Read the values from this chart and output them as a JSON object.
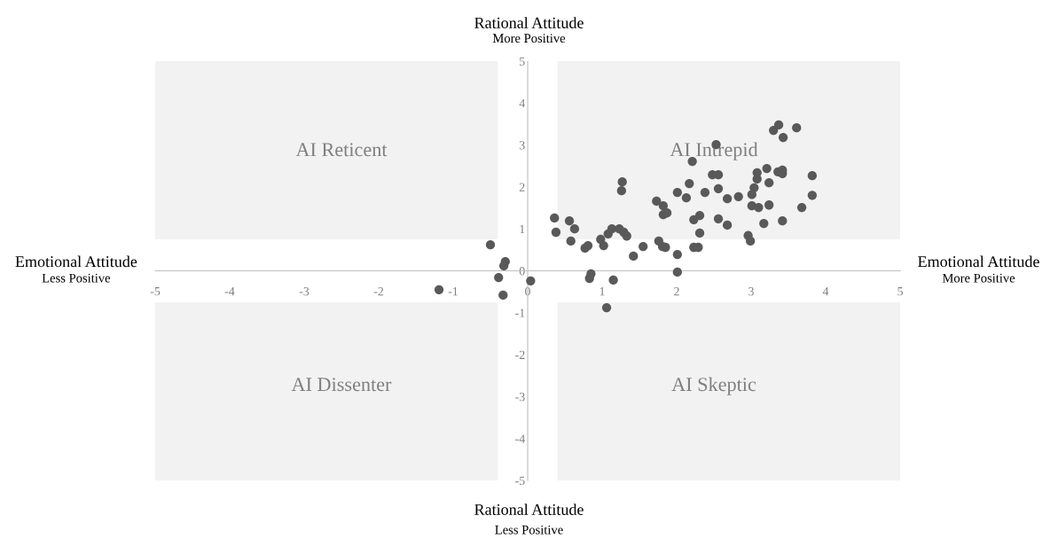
{
  "chart_data": {
    "type": "scatter",
    "annotations": [
      "Rational Attitude",
      "More Positive",
      "Emotional Attitude",
      "Less Positive",
      "Emotional Attitude",
      "More Positive",
      "Rational Attitude",
      "Less Positive",
      "AI Reticent",
      "AI Intrepid",
      "AI Dissenter",
      "AI Skeptic"
    ],
    "x": [
      -1.19,
      -0.5,
      -0.3,
      -0.32,
      -0.39,
      -0.33,
      0.04,
      0.36,
      0.38,
      0.56,
      0.63,
      0.58,
      0.77,
      0.81,
      0.85,
      0.83,
      0.98,
      1.02,
      1.06,
      1.15,
      1.08,
      1.13,
      1.23,
      1.29,
      1.33,
      1.27,
      1.26,
      1.42,
      1.55,
      1.73,
      1.76,
      1.82,
      1.81,
      1.85,
      1.82,
      1.87,
      2.01,
      2.13,
      2.17,
      2.21,
      2.23,
      2.31,
      2.31,
      2.23,
      2.29,
      2.01,
      2.01,
      2.38,
      2.48,
      2.56,
      2.53,
      2.56,
      2.56,
      2.68,
      2.68,
      2.83,
      2.96,
      2.99,
      3.01,
      3.01,
      3.04,
      3.08,
      3.08,
      3.1,
      3.17,
      3.21,
      3.24,
      3.24,
      3.3,
      3.37,
      3.43,
      3.36,
      3.42,
      3.42,
      3.42,
      3.61,
      3.68,
      3.82,
      3.82
    ],
    "values": [
      -0.45,
      0.62,
      0.22,
      0.12,
      -0.16,
      -0.58,
      -0.24,
      1.26,
      0.92,
      1.19,
      1.0,
      0.71,
      0.54,
      0.6,
      -0.07,
      -0.18,
      0.75,
      0.6,
      -0.88,
      -0.22,
      0.88,
      1.0,
      1.0,
      0.92,
      0.83,
      2.12,
      1.91,
      0.35,
      0.58,
      1.66,
      0.71,
      1.55,
      0.58,
      0.56,
      1.34,
      1.38,
      1.87,
      1.74,
      2.08,
      2.61,
      1.22,
      1.32,
      0.9,
      0.56,
      0.56,
      0.39,
      -0.03,
      1.87,
      2.29,
      2.29,
      3.01,
      1.96,
      1.24,
      1.72,
      1.09,
      1.77,
      0.84,
      0.71,
      1.55,
      1.82,
      1.98,
      2.34,
      2.19,
      1.51,
      1.13,
      2.44,
      2.1,
      1.57,
      3.35,
      3.48,
      3.18,
      2.36,
      2.4,
      2.32,
      1.19,
      3.41,
      1.51,
      2.27,
      1.8
    ],
    "color": "#595959",
    "marker": "circle",
    "xlim": [
      -5,
      5
    ],
    "ylim": [
      -5,
      5
    ],
    "xticks": [
      -5,
      -4,
      -3,
      -2,
      -1,
      0,
      1,
      2,
      3,
      4,
      5
    ],
    "yticks": [
      -5,
      -4,
      -3,
      -2,
      -1,
      0,
      1,
      2,
      3,
      4,
      5
    ],
    "grid": false,
    "legend": false
  }
}
